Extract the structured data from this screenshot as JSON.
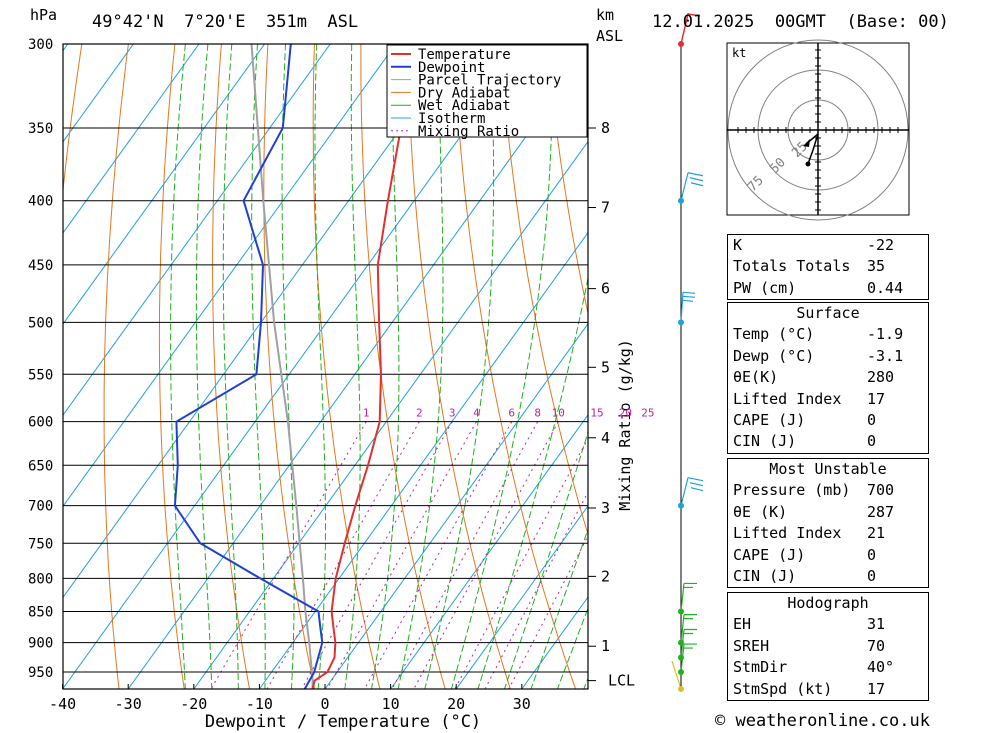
{
  "header": {
    "hpa_label": "hPa",
    "location": "49°42'N  7°20'E  351m  ASL",
    "km_label": "km",
    "asl_label": "ASL",
    "datetime": "12.01.2025  00GMT  (Base: 00)",
    "copyright": "© weatheronline.co.uk"
  },
  "chart_data": {
    "type": "skew-t",
    "xlabel": "Dewpoint / Temperature (°C)",
    "ylabel_right": "Mixing Ratio (g/kg)",
    "x_ticks": [
      -40,
      -30,
      -20,
      -10,
      0,
      10,
      20,
      30
    ],
    "pressure_levels": [
      300,
      350,
      400,
      450,
      500,
      550,
      600,
      650,
      700,
      750,
      800,
      850,
      900,
      950
    ],
    "km_ticks": [
      {
        "label": "8",
        "p": 350
      },
      {
        "label": "7",
        "p": 405
      },
      {
        "label": "6",
        "p": 470
      },
      {
        "label": "5",
        "p": 543
      },
      {
        "label": "4",
        "p": 618
      },
      {
        "label": "3",
        "p": 703
      },
      {
        "label": "2",
        "p": 797
      },
      {
        "label": "1",
        "p": 906
      },
      {
        "label": "LCL",
        "p": 965
      }
    ],
    "mixing_ratio_labels": [
      "1",
      "2",
      "3",
      "4",
      "6",
      "8",
      "10",
      "15",
      "20",
      "25"
    ],
    "mixing_ratio_values": [
      1,
      2,
      3,
      4,
      6,
      8,
      10,
      15,
      20,
      25
    ],
    "legend": [
      "Temperature",
      "Dewpoint",
      "Parcel Trajectory",
      "Dry Adiabat",
      "Wet Adiabat",
      "Isotherm",
      "Mixing Ratio"
    ],
    "colors": {
      "temperature": "#e03030",
      "dewpoint": "#2040d0",
      "parcel": "#a0a0a0",
      "dry_adiabat": "#e07820",
      "wet_adiabat": "#20b020",
      "isotherm": "#20a0e0",
      "mixing_ratio": "#c020a0"
    },
    "temperature": [
      {
        "p": 980,
        "t": -1.9
      },
      {
        "p": 965,
        "t": -2.5
      },
      {
        "p": 950,
        "t": -1.5
      },
      {
        "p": 925,
        "t": -2.0
      },
      {
        "p": 900,
        "t": -3.5
      },
      {
        "p": 875,
        "t": -5.5
      },
      {
        "p": 850,
        "t": -7.5
      },
      {
        "p": 800,
        "t": -10.5
      },
      {
        "p": 750,
        "t": -13.0
      },
      {
        "p": 700,
        "t": -15.5
      },
      {
        "p": 650,
        "t": -18.0
      },
      {
        "p": 600,
        "t": -21.0
      },
      {
        "p": 550,
        "t": -26.0
      },
      {
        "p": 500,
        "t": -32.0
      },
      {
        "p": 450,
        "t": -38.5
      },
      {
        "p": 400,
        "t": -44.0
      },
      {
        "p": 350,
        "t": -50.0
      },
      {
        "p": 300,
        "t": -56.0
      }
    ],
    "dewpoint": [
      {
        "p": 980,
        "t": -3.1
      },
      {
        "p": 950,
        "t": -3.5
      },
      {
        "p": 900,
        "t": -5.5
      },
      {
        "p": 875,
        "t": -7.5
      },
      {
        "p": 850,
        "t": -9.5
      },
      {
        "p": 800,
        "t": -22.0
      },
      {
        "p": 750,
        "t": -35.0
      },
      {
        "p": 700,
        "t": -43.0
      },
      {
        "p": 650,
        "t": -47.0
      },
      {
        "p": 600,
        "t": -52.0
      },
      {
        "p": 550,
        "t": -45.0
      },
      {
        "p": 500,
        "t": -50.0
      },
      {
        "p": 450,
        "t": -56.0
      },
      {
        "p": 400,
        "t": -66.0
      },
      {
        "p": 350,
        "t": -68.0
      },
      {
        "p": 300,
        "t": -76.0
      }
    ],
    "parcel": [
      {
        "p": 980,
        "t": -1.9
      },
      {
        "p": 965,
        "t": -2.8
      },
      {
        "p": 900,
        "t": -7.5
      },
      {
        "p": 850,
        "t": -11.5
      },
      {
        "p": 800,
        "t": -15.5
      },
      {
        "p": 700,
        "t": -24.5
      },
      {
        "p": 600,
        "t": -35.0
      },
      {
        "p": 500,
        "t": -48.0
      },
      {
        "p": 400,
        "t": -63.0
      },
      {
        "p": 300,
        "t": -82.0
      }
    ],
    "x_range": [
      -40,
      40
    ],
    "p_range": [
      300,
      980
    ],
    "hodograph": {
      "unit": "kt",
      "ring_labels": [
        "25",
        "50",
        "75"
      ]
    },
    "wind_barb_pressures": [
      300,
      400,
      500,
      700,
      850,
      900,
      925,
      950,
      980
    ]
  },
  "indices": {
    "rows": [
      {
        "label": "K",
        "value": "-22"
      },
      {
        "label": "Totals Totals",
        "value": "35"
      },
      {
        "label": "PW (cm)",
        "value": "0.44"
      }
    ]
  },
  "surface": {
    "title": "Surface",
    "rows": [
      {
        "label": "Temp (°C)",
        "value": "-1.9"
      },
      {
        "label": "Dewp (°C)",
        "value": "-3.1"
      },
      {
        "label": "θE(K)",
        "value": "280"
      },
      {
        "label": "Lifted Index",
        "value": "17"
      },
      {
        "label": "CAPE (J)",
        "value": "0"
      },
      {
        "label": "CIN (J)",
        "value": "0"
      }
    ]
  },
  "most_unstable": {
    "title": "Most Unstable",
    "rows": [
      {
        "label": "Pressure (mb)",
        "value": "700"
      },
      {
        "label": "θE (K)",
        "value": "287"
      },
      {
        "label": "Lifted Index",
        "value": "21"
      },
      {
        "label": "CAPE (J)",
        "value": "0"
      },
      {
        "label": "CIN (J)",
        "value": "0"
      }
    ]
  },
  "hodograph_table": {
    "title": "Hodograph",
    "rows": [
      {
        "label": "EH",
        "value": "31"
      },
      {
        "label": "SREH",
        "value": "70"
      },
      {
        "label": "StmDir",
        "value": "40°"
      },
      {
        "label": "StmSpd (kt)",
        "value": "17"
      }
    ]
  }
}
